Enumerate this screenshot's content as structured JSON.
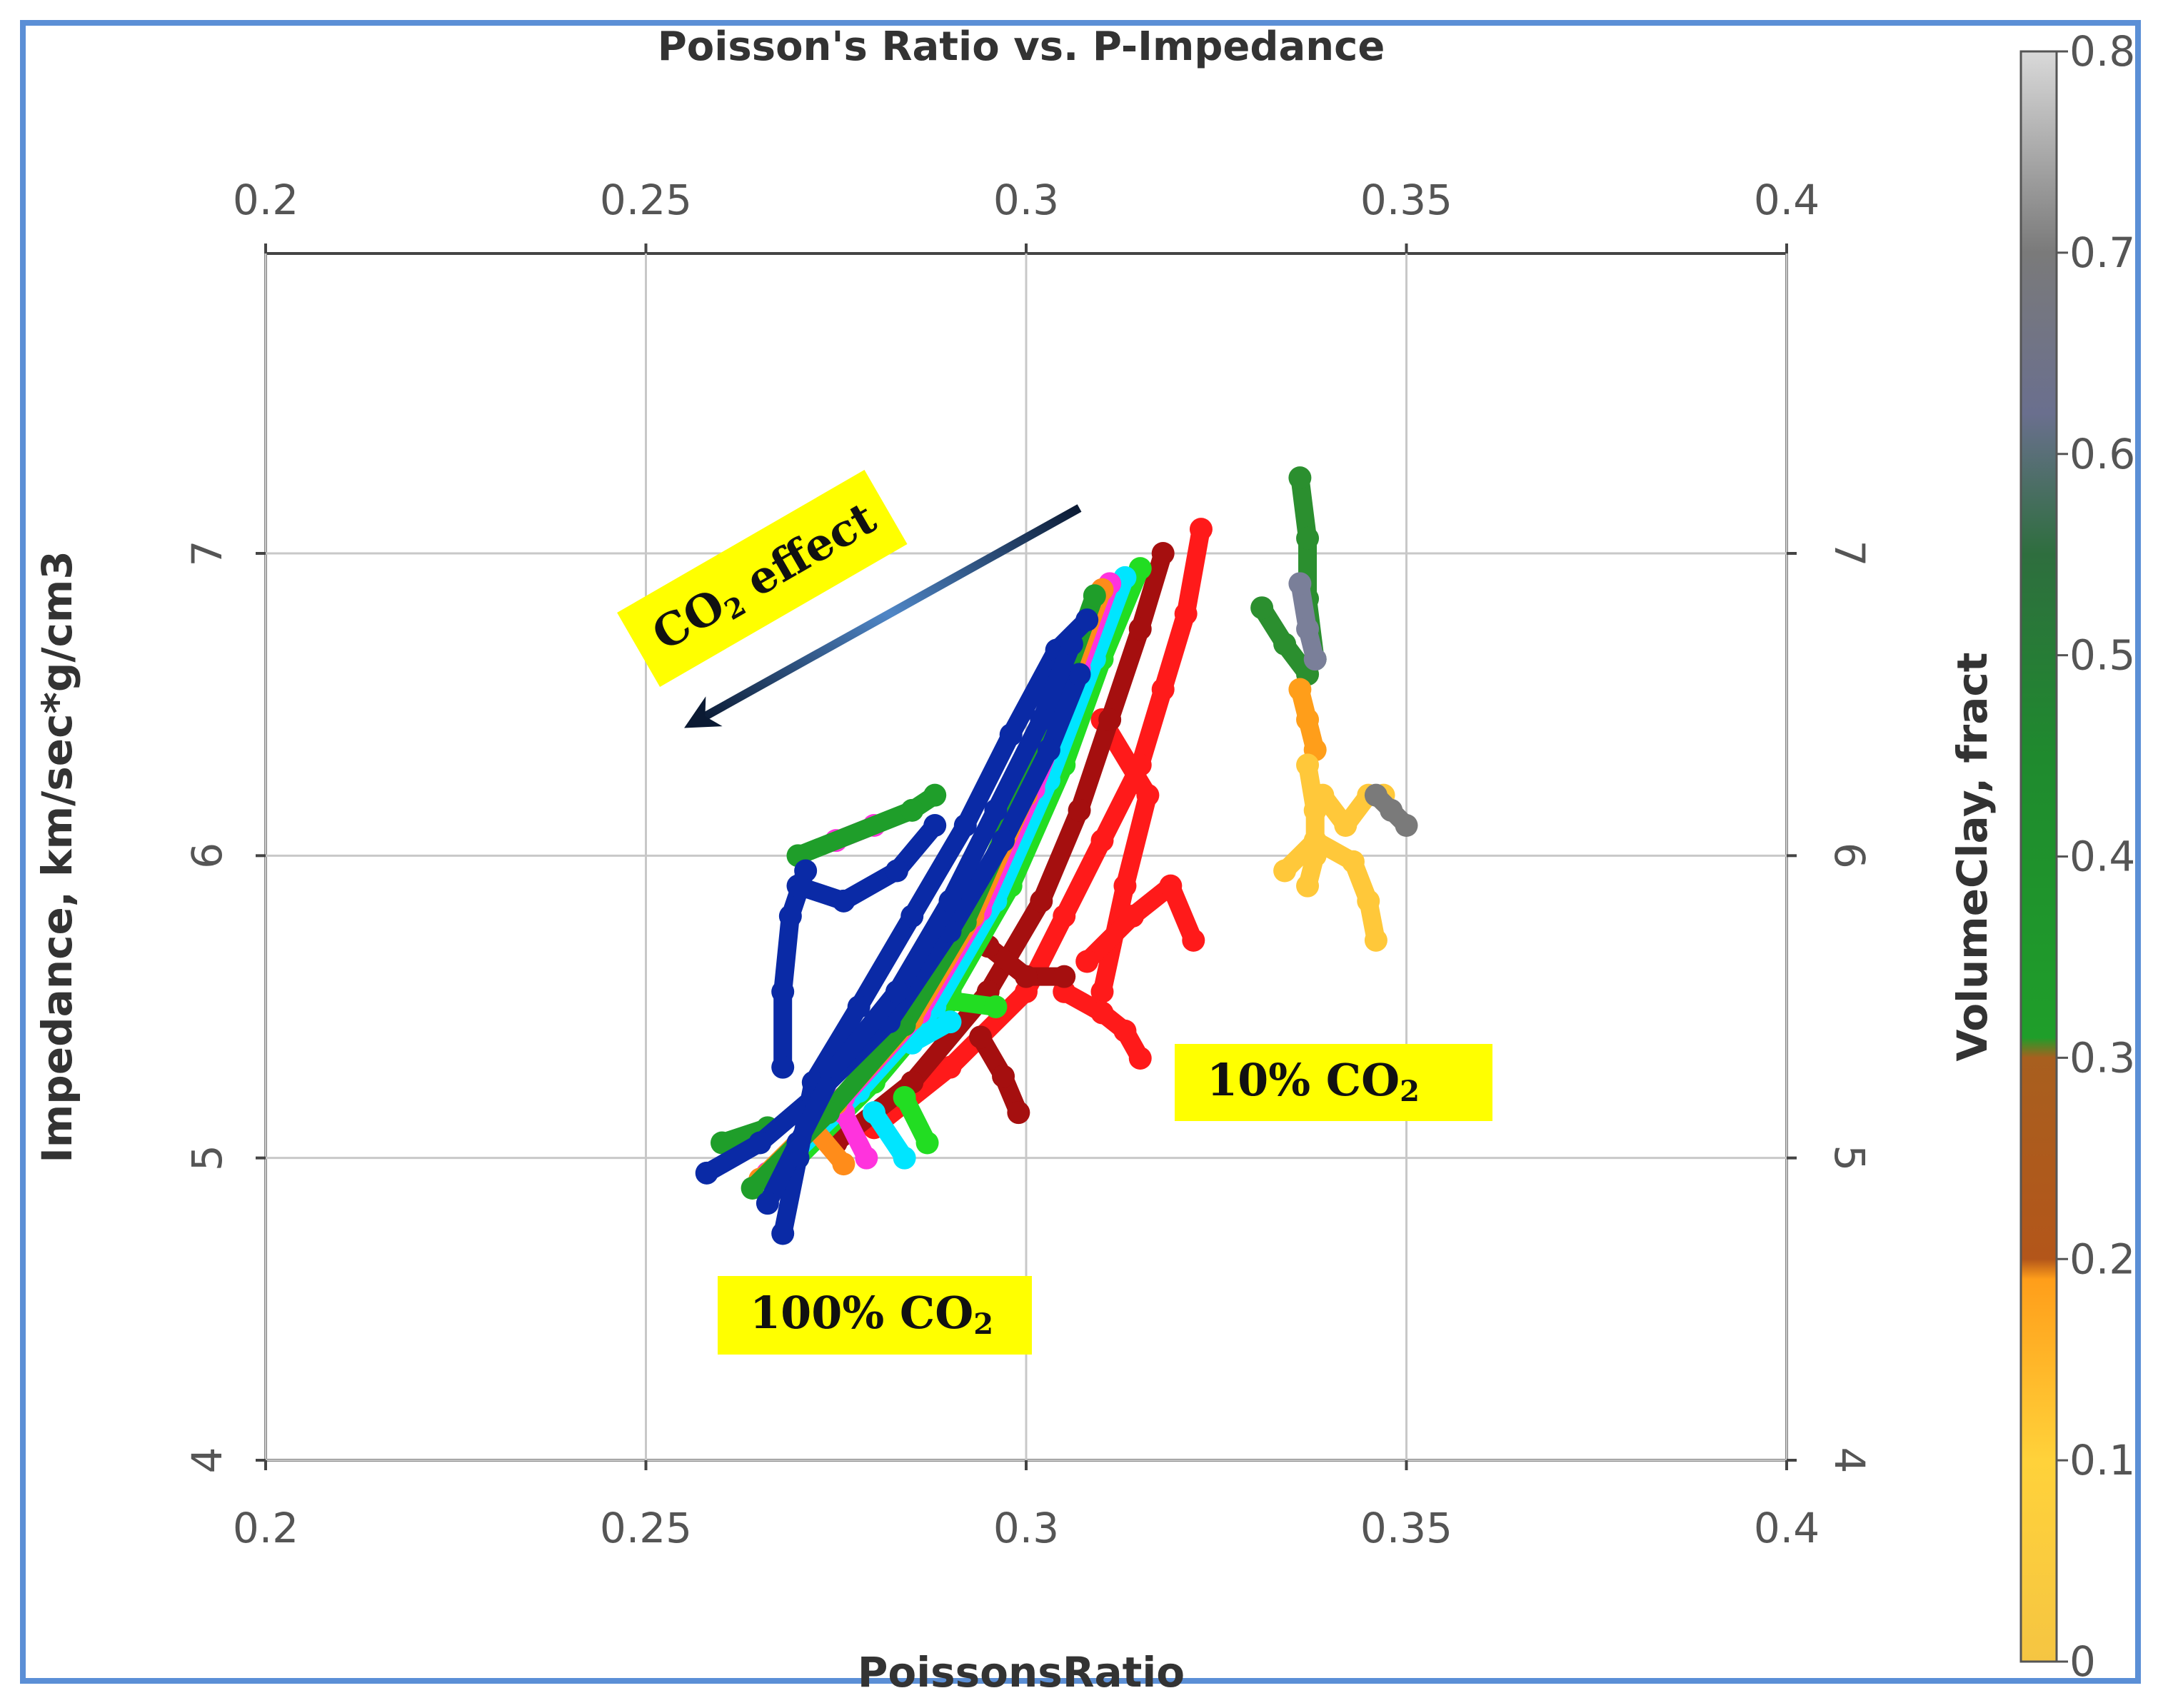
{
  "chart_data": {
    "type": "scatter",
    "title": "Poisson's Ratio vs. P-Impedance",
    "xlabel": "PoissonsRatio",
    "ylabel": "Impedance, km/sec*g/cm3",
    "xlim": [
      0.2,
      0.4
    ],
    "ylim": [
      4,
      8
    ],
    "x_ticks": [
      "0.2",
      "0.25",
      "0.3",
      "0.35",
      "0.4"
    ],
    "y_ticks": [
      "4",
      "5",
      "6",
      "7"
    ],
    "grid": true,
    "colorbar": {
      "label": "VolumeClay, fract",
      "ticks": [
        "0",
        "0.1",
        "0.2",
        "0.3",
        "0.4",
        "0.5",
        "0.6",
        "0.7",
        "0.8"
      ],
      "range": [
        0,
        0.8
      ],
      "stops": [
        {
          "v": 0.0,
          "color": "#f5c542"
        },
        {
          "v": 0.1,
          "color": "#ffd23a"
        },
        {
          "v": 0.19,
          "color": "#ff9e1a"
        },
        {
          "v": 0.2,
          "color": "#b3561a"
        },
        {
          "v": 0.3,
          "color": "#a85f1f"
        },
        {
          "v": 0.31,
          "color": "#1f9e2a"
        },
        {
          "v": 0.45,
          "color": "#1f8a2e"
        },
        {
          "v": 0.55,
          "color": "#2e6e3e"
        },
        {
          "v": 0.62,
          "color": "#6a6f8e"
        },
        {
          "v": 0.7,
          "color": "#7a7a7a"
        },
        {
          "v": 0.8,
          "color": "#d9d9d9"
        }
      ]
    },
    "series": [
      {
        "color": "#ff1a1a",
        "points": [
          [
            0.28,
            5.1
          ],
          [
            0.29,
            5.3
          ],
          [
            0.3,
            5.55
          ],
          [
            0.305,
            5.8
          ],
          [
            0.31,
            6.05
          ],
          [
            0.315,
            6.3
          ],
          [
            0.318,
            6.55
          ],
          [
            0.321,
            6.8
          ],
          [
            0.323,
            7.08
          ]
        ]
      },
      {
        "color": "#ff1a1a",
        "points": [
          [
            0.31,
            5.55
          ],
          [
            0.313,
            5.9
          ],
          [
            0.316,
            6.2
          ],
          [
            0.31,
            6.45
          ]
        ]
      },
      {
        "color": "#ff1a1a",
        "points": [
          [
            0.308,
            5.65
          ],
          [
            0.314,
            5.8
          ],
          [
            0.319,
            5.9
          ],
          [
            0.322,
            5.72
          ]
        ]
      },
      {
        "color": "#ff1a1a",
        "points": [
          [
            0.305,
            5.55
          ],
          [
            0.31,
            5.48
          ],
          [
            0.313,
            5.42
          ],
          [
            0.315,
            5.33
          ]
        ]
      },
      {
        "color": "#a50f0f",
        "points": [
          [
            0.275,
            5.05
          ],
          [
            0.285,
            5.25
          ],
          [
            0.295,
            5.55
          ],
          [
            0.302,
            5.85
          ],
          [
            0.307,
            6.15
          ],
          [
            0.311,
            6.45
          ],
          [
            0.315,
            6.75
          ],
          [
            0.318,
            7.0
          ]
        ]
      },
      {
        "color": "#a50f0f",
        "points": [
          [
            0.295,
            5.7
          ],
          [
            0.3,
            5.6
          ],
          [
            0.305,
            5.6
          ]
        ]
      },
      {
        "color": "#a50f0f",
        "points": [
          [
            0.294,
            5.4
          ],
          [
            0.297,
            5.27
          ],
          [
            0.299,
            5.15
          ]
        ]
      },
      {
        "color": "#22dd22",
        "points": [
          [
            0.27,
            5.0
          ],
          [
            0.28,
            5.25
          ],
          [
            0.29,
            5.55
          ],
          [
            0.298,
            5.9
          ],
          [
            0.305,
            6.3
          ],
          [
            0.31,
            6.65
          ],
          [
            0.315,
            6.95
          ]
        ]
      },
      {
        "color": "#22dd22",
        "points": [
          [
            0.285,
            5.4
          ],
          [
            0.29,
            5.52
          ],
          [
            0.296,
            5.5
          ]
        ]
      },
      {
        "color": "#22dd22",
        "points": [
          [
            0.284,
            5.2
          ],
          [
            0.287,
            5.05
          ]
        ]
      },
      {
        "color": "#00e5ff",
        "points": [
          [
            0.268,
            4.98
          ],
          [
            0.278,
            5.22
          ],
          [
            0.288,
            5.5
          ],
          [
            0.296,
            5.85
          ],
          [
            0.303,
            6.25
          ],
          [
            0.309,
            6.65
          ],
          [
            0.313,
            6.92
          ]
        ]
      },
      {
        "color": "#00e5ff",
        "points": [
          [
            0.285,
            5.38
          ],
          [
            0.29,
            5.45
          ]
        ]
      },
      {
        "color": "#00e5ff",
        "points": [
          [
            0.28,
            5.15
          ],
          [
            0.284,
            5.0
          ]
        ]
      },
      {
        "color": "#ff33dd",
        "points": [
          [
            0.266,
            4.95
          ],
          [
            0.276,
            5.2
          ],
          [
            0.286,
            5.48
          ],
          [
            0.294,
            5.82
          ],
          [
            0.301,
            6.22
          ],
          [
            0.307,
            6.62
          ],
          [
            0.311,
            6.9
          ]
        ]
      },
      {
        "color": "#ff33dd",
        "points": [
          [
            0.276,
            5.15
          ],
          [
            0.279,
            5.0
          ]
        ]
      },
      {
        "color": "#ff33dd",
        "points": [
          [
            0.275,
            6.05
          ],
          [
            0.28,
            6.1
          ]
        ]
      },
      {
        "color": "#ff8c1a",
        "points": [
          [
            0.265,
            4.93
          ],
          [
            0.275,
            5.18
          ],
          [
            0.285,
            5.46
          ],
          [
            0.293,
            5.8
          ],
          [
            0.3,
            6.2
          ],
          [
            0.306,
            6.6
          ],
          [
            0.31,
            6.88
          ]
        ]
      },
      {
        "color": "#ff8c1a",
        "points": [
          [
            0.272,
            5.1
          ],
          [
            0.276,
            4.98
          ]
        ]
      },
      {
        "color": "#1f9e2a",
        "points": [
          [
            0.264,
            4.9
          ],
          [
            0.274,
            5.15
          ],
          [
            0.284,
            5.44
          ],
          [
            0.292,
            5.78
          ],
          [
            0.299,
            6.18
          ],
          [
            0.305,
            6.58
          ],
          [
            0.309,
            6.86
          ]
        ]
      },
      {
        "color": "#1f9e2a",
        "points": [
          [
            0.27,
            6.0
          ],
          [
            0.285,
            6.15
          ],
          [
            0.288,
            6.2
          ]
        ]
      },
      {
        "color": "#1f9e2a",
        "points": [
          [
            0.26,
            5.05
          ],
          [
            0.266,
            5.1
          ]
        ]
      },
      {
        "color": "#0a2aa6",
        "points": [
          [
            0.268,
            4.75
          ],
          [
            0.27,
            5.0
          ],
          [
            0.272,
            5.25
          ],
          [
            0.278,
            5.5
          ],
          [
            0.285,
            5.8
          ],
          [
            0.292,
            6.1
          ],
          [
            0.298,
            6.4
          ],
          [
            0.304,
            6.68
          ],
          [
            0.308,
            6.78
          ]
        ]
      },
      {
        "color": "#0a2aa6",
        "points": [
          [
            0.258,
            4.95
          ],
          [
            0.265,
            5.05
          ],
          [
            0.272,
            5.2
          ],
          [
            0.282,
            5.45
          ],
          [
            0.29,
            5.75
          ],
          [
            0.297,
            6.05
          ],
          [
            0.303,
            6.35
          ],
          [
            0.307,
            6.6
          ]
        ]
      },
      {
        "color": "#0a2aa6",
        "points": [
          [
            0.268,
            5.3
          ],
          [
            0.268,
            5.55
          ],
          [
            0.269,
            5.8
          ],
          [
            0.271,
            5.95
          ]
        ]
      },
      {
        "color": "#0a2aa6",
        "points": [
          [
            0.27,
            5.9
          ],
          [
            0.276,
            5.85
          ],
          [
            0.283,
            5.95
          ],
          [
            0.288,
            6.1
          ]
        ]
      },
      {
        "color": "#0a2aa6",
        "points": [
          [
            0.266,
            4.85
          ],
          [
            0.27,
            5.05
          ],
          [
            0.275,
            5.3
          ],
          [
            0.283,
            5.55
          ],
          [
            0.29,
            5.85
          ],
          [
            0.296,
            6.15
          ],
          [
            0.302,
            6.45
          ],
          [
            0.306,
            6.7
          ]
        ]
      },
      {
        "color": "#2b8f2f",
        "points": [
          [
            0.336,
            7.25
          ],
          [
            0.337,
            7.05
          ],
          [
            0.337,
            6.85
          ],
          [
            0.338,
            6.65
          ]
        ]
      },
      {
        "color": "#2b8f2f",
        "points": [
          [
            0.331,
            6.82
          ],
          [
            0.334,
            6.7
          ],
          [
            0.337,
            6.6
          ]
        ]
      },
      {
        "color": "#7a7f99",
        "points": [
          [
            0.336,
            6.9
          ],
          [
            0.337,
            6.75
          ],
          [
            0.338,
            6.65
          ]
        ]
      },
      {
        "color": "#ff9e1a",
        "points": [
          [
            0.336,
            6.55
          ],
          [
            0.337,
            6.45
          ],
          [
            0.338,
            6.35
          ]
        ]
      },
      {
        "color": "#ffc83a",
        "points": [
          [
            0.337,
            6.3
          ],
          [
            0.338,
            6.15
          ],
          [
            0.338,
            6.0
          ],
          [
            0.337,
            5.9
          ]
        ]
      },
      {
        "color": "#ffc83a",
        "points": [
          [
            0.334,
            5.95
          ],
          [
            0.338,
            6.05
          ],
          [
            0.343,
            5.98
          ],
          [
            0.345,
            5.85
          ],
          [
            0.346,
            5.72
          ]
        ]
      },
      {
        "color": "#ffc83a",
        "points": [
          [
            0.339,
            6.2
          ],
          [
            0.342,
            6.1
          ],
          [
            0.345,
            6.2
          ],
          [
            0.347,
            6.2
          ]
        ]
      },
      {
        "color": "#7a7a7a",
        "points": [
          [
            0.346,
            6.2
          ],
          [
            0.348,
            6.15
          ],
          [
            0.35,
            6.1
          ]
        ]
      }
    ],
    "annotations": [
      {
        "text_parts": [
          "CO",
          "2",
          " effect"
        ],
        "at": [
          0.268,
          6.7
        ]
      },
      {
        "text_parts": [
          "10% CO",
          "2"
        ],
        "at": [
          0.326,
          5.28
        ]
      },
      {
        "text_parts": [
          "100% CO",
          "2"
        ],
        "at": [
          0.266,
          4.5
        ]
      }
    ],
    "arrow": {
      "from": [
        0.307,
        7.15
      ],
      "to": [
        0.257,
        6.45
      ]
    }
  }
}
